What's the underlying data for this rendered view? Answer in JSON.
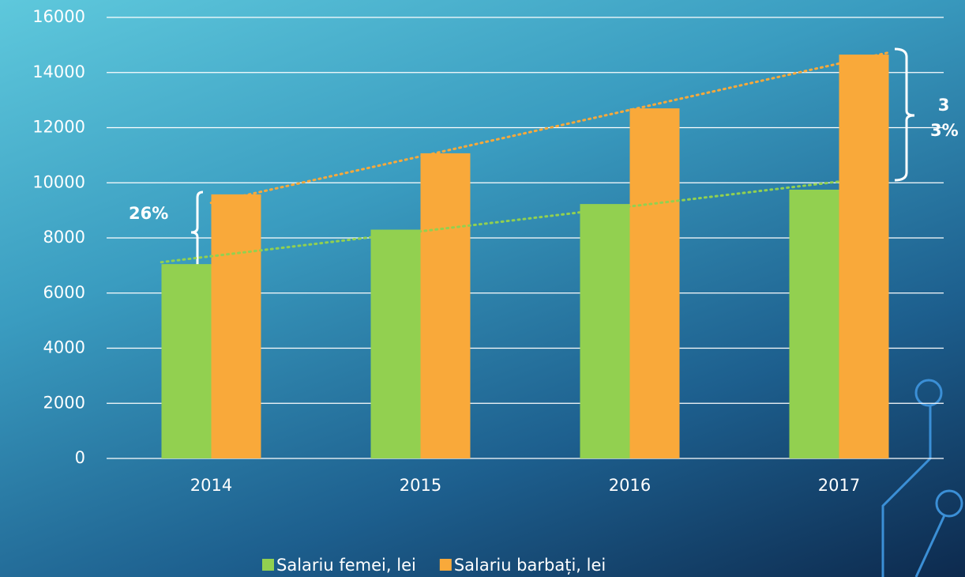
{
  "chart_data": {
    "type": "bar",
    "categories": [
      "2014",
      "2015",
      "2016",
      "2017"
    ],
    "series": [
      {
        "name": "Salariu femei, lei",
        "color": "#92d050",
        "values": [
          7050,
          8300,
          9230,
          9750
        ]
      },
      {
        "name": "Salariu barbați, lei",
        "color": "#f9a93a",
        "values": [
          9580,
          11070,
          12700,
          14650
        ]
      }
    ],
    "ylim": [
      0,
      16000
    ],
    "yticks": [
      0,
      2000,
      4000,
      6000,
      8000,
      10000,
      12000,
      14000,
      16000
    ],
    "grid": true,
    "legend": "bottom",
    "trendline": "linear",
    "annotations": [
      "26%",
      "33%"
    ]
  }
}
